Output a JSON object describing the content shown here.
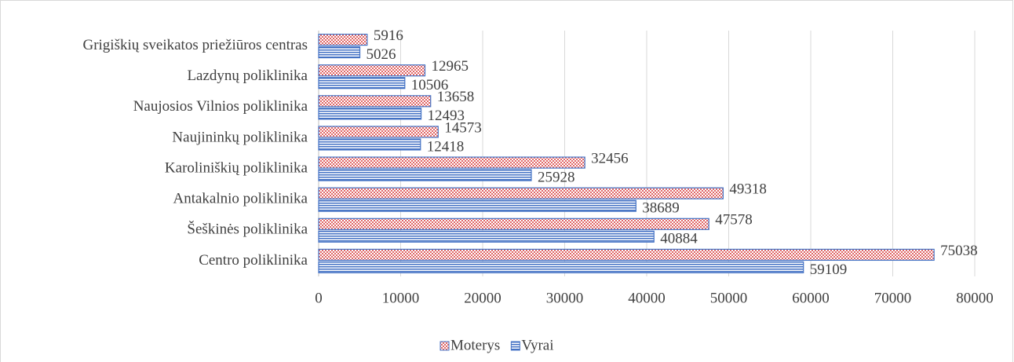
{
  "chart_data": {
    "type": "barh",
    "categories": [
      "Grigiškių sveikatos priežiūros centras",
      "Lazdynų poliklinika",
      "Naujosios Vilnios poliklinika",
      "Naujininkų poliklinika",
      "Karoliniškių poliklinika",
      "Antakalnio poliklinika",
      "Šeškinės poliklinika",
      "Centro poliklinika"
    ],
    "series": [
      {
        "name": "Moterys",
        "color": "#e06666",
        "pattern": "checker",
        "values": [
          5916,
          12965,
          13658,
          14573,
          32456,
          49318,
          47578,
          75038
        ]
      },
      {
        "name": "Vyrai",
        "color": "#4472c4",
        "pattern": "hstripe",
        "values": [
          5026,
          10506,
          12493,
          12418,
          25928,
          38689,
          40884,
          59109
        ]
      }
    ],
    "edgecolor": "#4472c4",
    "xlim": [
      0,
      80000
    ],
    "xticks": [
      0,
      10000,
      20000,
      30000,
      40000,
      50000,
      60000,
      70000,
      80000
    ],
    "grid": true,
    "legend": "bottom"
  }
}
